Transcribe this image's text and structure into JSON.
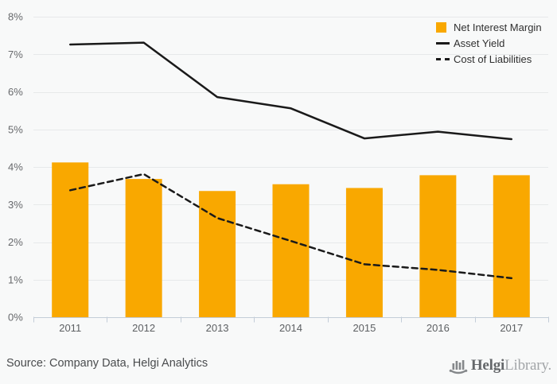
{
  "chart_data": {
    "type": "bar",
    "subtype": "bar-and-lines combo",
    "categories": [
      "2011",
      "2012",
      "2013",
      "2014",
      "2015",
      "2016",
      "2017"
    ],
    "series": [
      {
        "name": "Net Interest Margin",
        "type": "bar",
        "style": "solid",
        "color": "#F9A800",
        "values": [
          4.12,
          3.68,
          3.36,
          3.54,
          3.44,
          3.78,
          3.78
        ]
      },
      {
        "name": "Asset Yield",
        "type": "line",
        "style": "solid",
        "color": "#1a1a1a",
        "values": [
          7.26,
          7.31,
          5.86,
          5.56,
          4.76,
          4.94,
          4.74
        ]
      },
      {
        "name": "Cost of Liabilities",
        "type": "line",
        "style": "dashed",
        "color": "#1a1a1a",
        "values": [
          3.38,
          3.81,
          2.64,
          2.03,
          1.41,
          1.26,
          1.04
        ]
      }
    ],
    "title": "",
    "xlabel": "",
    "ylabel": "",
    "ylim": [
      0,
      8
    ],
    "ytick_step": 1,
    "ytick_suffix": "%",
    "grid": true,
    "legend_position": "top-right"
  },
  "colors": {
    "background": "#f8f9f9",
    "gridline": "#e7e9ea",
    "axis_line": "#c3cdd8",
    "bar": "#F9A800",
    "line": "#1a1a1a"
  },
  "footer": {
    "source_text": "Source: Company Data, Helgi Analytics",
    "logo_bold": "Helgi",
    "logo_light": "Library."
  }
}
